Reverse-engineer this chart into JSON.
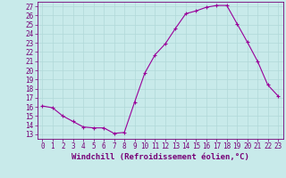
{
  "hours": [
    0,
    1,
    2,
    3,
    4,
    5,
    6,
    7,
    8,
    9,
    10,
    11,
    12,
    13,
    14,
    15,
    16,
    17,
    18,
    19,
    20,
    21,
    22,
    23
  ],
  "values": [
    16.1,
    15.9,
    15.0,
    14.4,
    13.8,
    13.7,
    13.7,
    13.1,
    13.2,
    16.5,
    19.7,
    21.7,
    22.9,
    24.6,
    26.2,
    26.5,
    26.9,
    27.1,
    27.1,
    25.1,
    23.1,
    21.0,
    18.4,
    17.2
  ],
  "line_color": "#990099",
  "marker": "+",
  "bg_color": "#c8eaea",
  "grid_color": "#b0d8d8",
  "xlabel": "Windchill (Refroidissement éolien,°C)",
  "ylabel_ticks": [
    13,
    14,
    15,
    16,
    17,
    18,
    19,
    20,
    21,
    22,
    23,
    24,
    25,
    26,
    27
  ],
  "ylim": [
    12.5,
    27.5
  ],
  "xlim": [
    -0.5,
    23.5
  ],
  "tick_fontsize": 5.5,
  "xlabel_fontsize": 6.5,
  "label_color": "#770077"
}
